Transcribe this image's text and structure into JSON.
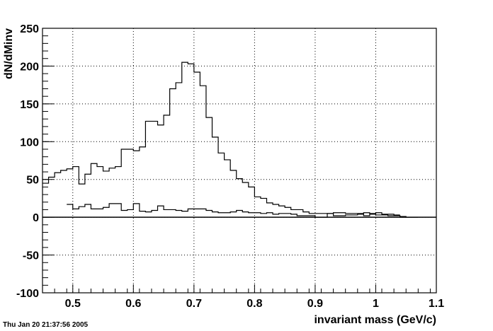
{
  "timestamp": "Thu Jan 20 21:37:56 2005",
  "chart_data": {
    "type": "line",
    "title": "",
    "xlabel": "invariant mass (GeV/c)",
    "ylabel": "dN/dMinv",
    "xlim": [
      0.45,
      1.1
    ],
    "ylim": [
      -100,
      250
    ],
    "grid": true,
    "x_ticks": [
      0.5,
      0.6,
      0.7,
      0.8,
      0.9,
      1.0,
      1.1
    ],
    "x_tick_labels": [
      "0.5",
      "0.6",
      "0.7",
      "0.8",
      "0.9",
      "1",
      "1.1"
    ],
    "y_ticks": [
      -100,
      -50,
      0,
      50,
      100,
      150,
      200,
      250
    ],
    "y_tick_labels": [
      "-100",
      "-50",
      "0",
      "50",
      "100",
      "150",
      "200",
      "250"
    ],
    "reference_line_y": 0,
    "bin_edges": [
      0.45,
      0.46,
      0.47,
      0.48,
      0.49,
      0.5,
      0.51,
      0.52,
      0.53,
      0.54,
      0.55,
      0.56,
      0.57,
      0.58,
      0.59,
      0.6,
      0.61,
      0.62,
      0.63,
      0.64,
      0.65,
      0.66,
      0.67,
      0.68,
      0.69,
      0.7,
      0.71,
      0.72,
      0.73,
      0.74,
      0.75,
      0.76,
      0.77,
      0.78,
      0.79,
      0.8,
      0.81,
      0.82,
      0.83,
      0.84,
      0.85,
      0.86,
      0.87,
      0.88,
      0.89,
      0.9,
      0.91,
      0.92,
      0.93,
      0.94,
      0.95,
      0.96,
      0.97,
      0.98,
      0.99,
      1.0,
      1.01,
      1.02,
      1.03,
      1.04,
      1.05,
      1.06,
      1.07,
      1.08,
      1.09,
      1.1
    ],
    "series": [
      {
        "values": [
          45,
          53,
          59,
          62,
          64,
          67,
          44,
          57,
          71,
          67,
          61,
          65,
          67,
          90,
          90,
          88,
          93,
          127,
          127,
          122,
          135,
          170,
          178,
          205,
          203,
          192,
          174,
          132,
          106,
          85,
          76,
          62,
          51,
          46,
          40,
          27,
          25,
          19,
          17,
          15,
          13,
          10,
          10,
          7,
          5,
          5,
          5,
          5,
          6,
          6,
          5,
          5,
          5,
          6,
          5,
          6,
          4,
          4,
          3
        ],
        "start_bin": 0,
        "color": "#000000"
      },
      {
        "values": [
          17,
          11,
          14,
          17,
          11,
          11,
          13,
          18,
          18,
          9,
          10,
          18,
          8,
          7,
          9,
          15,
          10,
          10,
          9,
          8,
          11,
          11,
          11,
          9,
          7,
          6,
          6,
          7,
          9,
          7,
          6,
          6,
          5,
          6,
          4,
          5,
          5,
          4,
          2,
          2,
          2,
          0,
          0,
          5,
          2,
          2,
          3,
          3,
          4,
          2,
          4,
          3,
          3,
          2,
          2,
          1,
          0,
          0
        ],
        "start_bin": 4,
        "color": "#000000"
      }
    ]
  }
}
